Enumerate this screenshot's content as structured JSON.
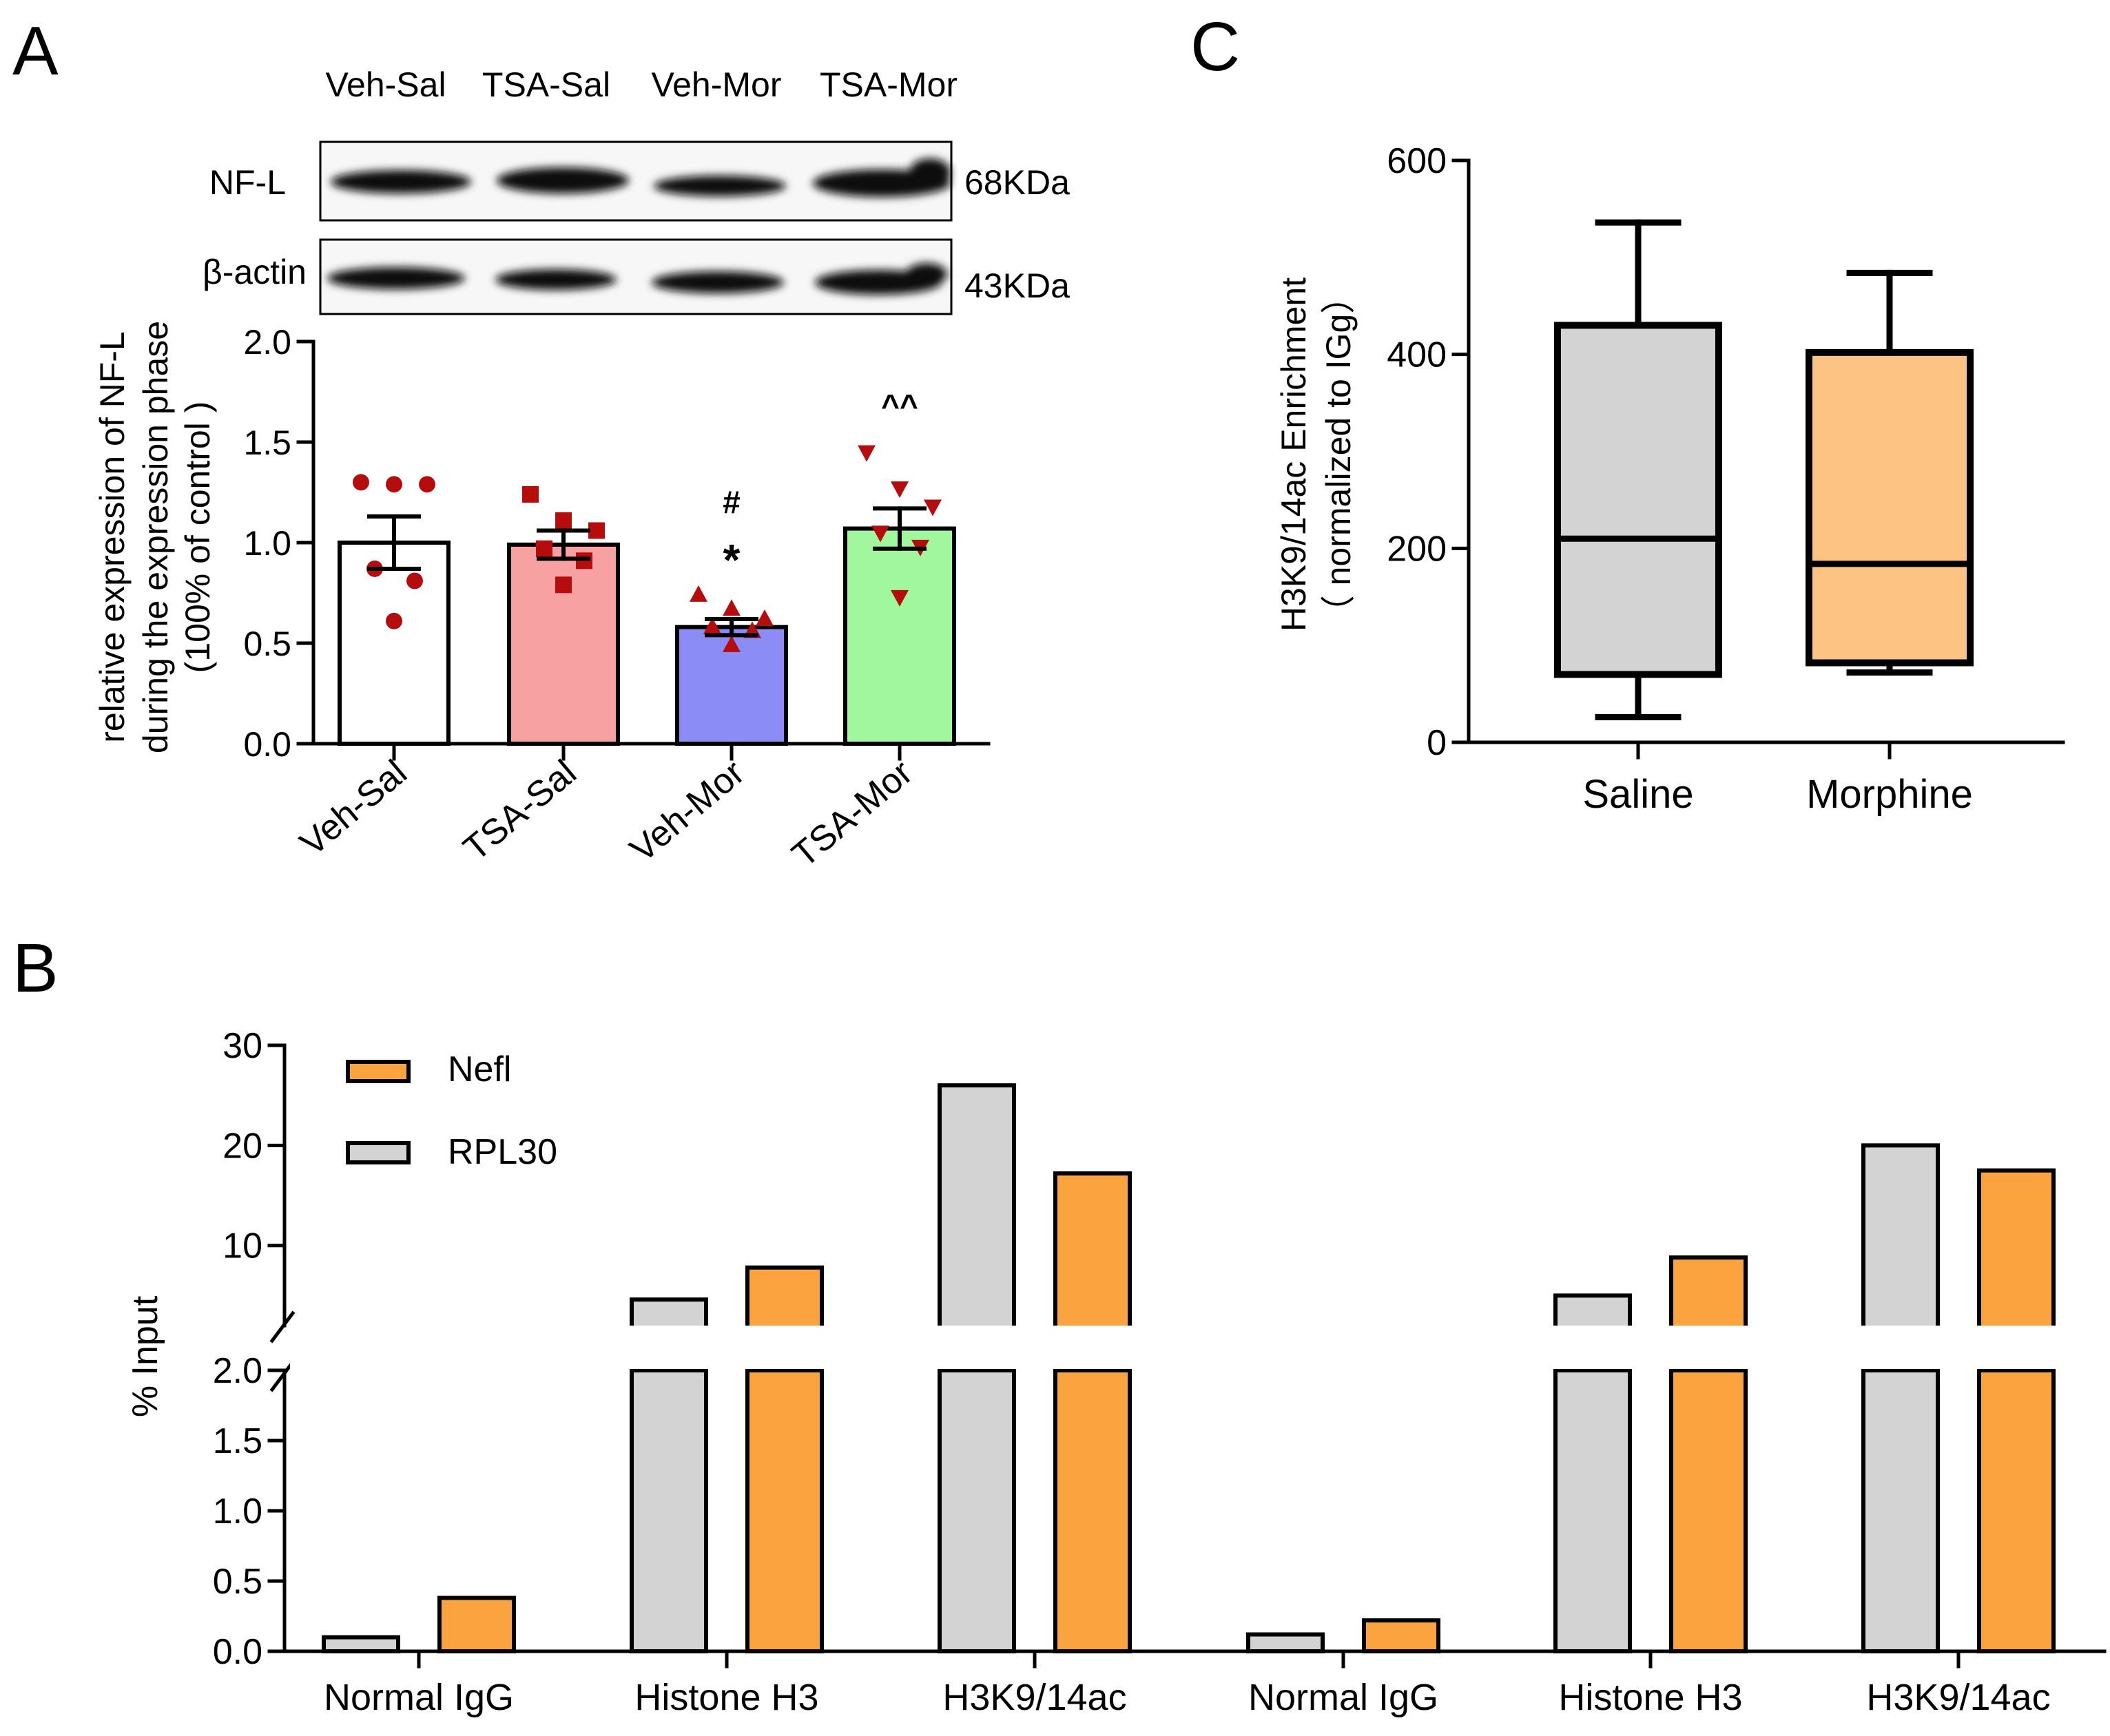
{
  "panels": {
    "a": "A",
    "b": "B",
    "c": "C"
  },
  "colors": {
    "veh_sal": "#ffffff",
    "tsa_sal": "#f7a1a3",
    "veh_mor": "#8c8cf7",
    "tsa_mor": "#a0f79e",
    "dot": "#b50d0d",
    "saline_box": "#d3d3d3",
    "morphine_box": "#fdc382",
    "rpl30": "#d3d3d3",
    "nefl": "#fba33e",
    "ink": "#000000"
  },
  "blot": {
    "lanes": [
      "Veh-Sal",
      "TSA-Sal",
      "Veh-Mor",
      "TSA-Mor"
    ],
    "rows": [
      {
        "label": "NF-L",
        "size": "68KDa"
      },
      {
        "label": "β-actin",
        "size": "43KDa"
      }
    ]
  },
  "chart_data": [
    {
      "panel": "A",
      "type": "bar",
      "ylabel_lines": [
        "relative expression of NF-L",
        "during the expression phase",
        "(100% of control )"
      ],
      "ylim": [
        0,
        2.0
      ],
      "yticks": [
        0.0,
        0.5,
        1.0,
        1.5,
        2.0
      ],
      "ytick_labels": [
        "0.0",
        "0.5",
        "1.0",
        "1.5",
        "2.0"
      ],
      "categories": [
        "Veh-Sal",
        "TSA-Sal",
        "Veh-Mor",
        "TSA-Mor"
      ],
      "values": [
        1.0,
        0.99,
        0.58,
        1.07
      ],
      "sem": [
        0.13,
        0.07,
        0.04,
        0.1
      ],
      "points": [
        [
          1.3,
          1.29,
          1.29,
          0.87,
          0.81,
          0.61
        ],
        [
          1.24,
          1.11,
          1.06,
          0.97,
          0.91,
          0.79
        ],
        [
          0.74,
          0.67,
          0.62,
          0.58,
          0.56,
          0.49
        ],
        [
          1.45,
          1.27,
          1.18,
          1.05,
          0.98,
          0.73
        ]
      ],
      "markers": [
        "circle",
        "square",
        "triangle-up",
        "triangle-down"
      ],
      "annotations": [
        {
          "category": "Veh-Mor",
          "lines": [
            "#",
            "*"
          ]
        },
        {
          "category": "TSA-Mor",
          "lines": [
            "^^"
          ]
        }
      ]
    },
    {
      "panel": "B",
      "type": "bar",
      "ylabel": "% Input",
      "y_broken_axis": true,
      "lower_segment": {
        "ylim": [
          0,
          2.0
        ],
        "ticks": [
          0.0,
          0.5,
          1.0,
          1.5,
          2.0
        ],
        "tick_labels": [
          "0.0",
          "0.5",
          "1.0",
          "1.5",
          "2.0"
        ]
      },
      "upper_segment": {
        "ylim": [
          2.0,
          30
        ],
        "ticks": [
          10,
          20,
          30
        ],
        "tick_labels": [
          "10",
          "20",
          "30"
        ]
      },
      "categories": [
        "Normal IgG",
        "Histone H3",
        "H3K9/14ac",
        "Normal IgG",
        "Histone H3",
        "H3K9/14ac"
      ],
      "legend": [
        "Nefl",
        "RPL30"
      ],
      "series": [
        {
          "name": "RPL30",
          "values": [
            0.1,
            4.6,
            26,
            0.12,
            5.0,
            20
          ]
        },
        {
          "name": "Nefl",
          "values": [
            0.38,
            7.8,
            17.2,
            0.22,
            8.8,
            17.5
          ]
        }
      ]
    },
    {
      "panel": "C",
      "type": "box",
      "ylabel_lines": [
        "H3K9/14ac Enrichment",
        "（ normalized to IGg）"
      ],
      "ylim": [
        0,
        600
      ],
      "yticks": [
        0,
        200,
        400,
        600
      ],
      "ytick_labels": [
        "0",
        "200",
        "400",
        "600"
      ],
      "categories": [
        "Saline",
        "Morphine"
      ],
      "boxes": [
        {
          "min": 26,
          "q1": 70,
          "median": 210,
          "q3": 430,
          "max": 536
        },
        {
          "min": 72,
          "q1": 82,
          "median": 184,
          "q3": 402,
          "max": 484
        }
      ]
    }
  ]
}
